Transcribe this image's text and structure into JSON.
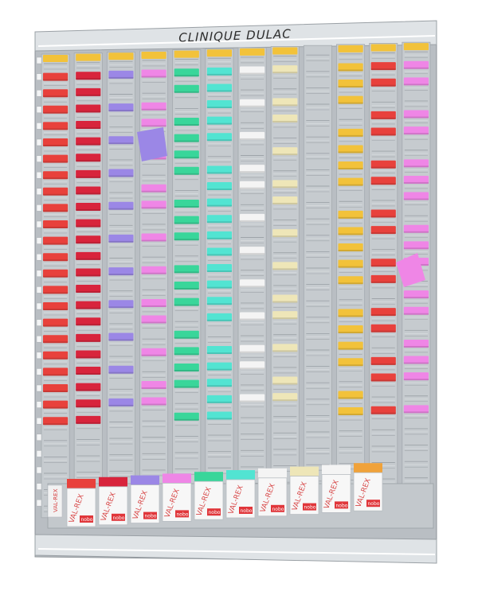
{
  "title": "CLINIQUE DULAC",
  "brand_labels": [
    "VAL-REX",
    "nobo"
  ],
  "board": {
    "columns": 12,
    "rows": 28,
    "frame_color": "#b9bec3",
    "slot_color": "#c6cbcf",
    "slot_line_color": "#9ea4a9",
    "rail_color": "#dfe3e6"
  },
  "colors": {
    "yellow": "#f2c23a",
    "red": "#e8413c",
    "crimson": "#d8243c",
    "violet": "#9b87e6",
    "pink": "#ef86e6",
    "green": "#39d69a",
    "aqua": "#52e4d2",
    "white": "#f4f4f4",
    "cream": "#eee6b8",
    "orange": "#f0a23a"
  },
  "columns": [
    {
      "name": "col-1",
      "header": "yellow",
      "cards": [
        "red",
        "red",
        "red",
        "red",
        "red",
        "red",
        "red",
        "red",
        "red",
        "red",
        "red",
        "red",
        "red",
        "red",
        "red",
        "red",
        "red",
        "red",
        "red",
        "red",
        "red",
        "red"
      ],
      "gaps": []
    },
    {
      "name": "col-2",
      "header": "yellow",
      "cards": [
        "crimson",
        "crimson",
        "crimson",
        "crimson",
        "crimson",
        "crimson",
        "crimson",
        "crimson",
        "crimson",
        "crimson",
        "crimson",
        "crimson",
        "crimson",
        "crimson",
        "crimson",
        "crimson",
        "crimson",
        "crimson",
        "crimson",
        "crimson",
        "crimson",
        "crimson"
      ],
      "gaps": []
    },
    {
      "name": "col-3",
      "header": "yellow",
      "cards": [
        "violet",
        "violet",
        "violet",
        "violet",
        "violet",
        "violet",
        "violet",
        "violet",
        "violet",
        "violet",
        "violet"
      ],
      "gaps": []
    },
    {
      "name": "col-4",
      "header": "yellow",
      "cards": [
        "pink",
        "pink",
        "pink",
        "pink",
        "pink",
        "pink",
        "pink",
        "pink",
        "pink",
        "pink",
        "pink",
        "pink",
        "pink"
      ],
      "gaps": []
    },
    {
      "name": "col-5",
      "header": "yellow",
      "cards": [
        "green",
        "green",
        "green",
        "green",
        "green",
        "green",
        "green",
        "green",
        "green",
        "green",
        "green",
        "green",
        "green",
        "green",
        "green",
        "green",
        "green"
      ],
      "gaps": []
    },
    {
      "name": "col-6",
      "header": "yellow",
      "cards": [
        "aqua",
        "aqua",
        "aqua",
        "aqua",
        "aqua",
        "aqua",
        "aqua",
        "aqua",
        "aqua",
        "aqua",
        "aqua",
        "aqua",
        "aqua",
        "aqua",
        "aqua",
        "aqua",
        "aqua",
        "aqua",
        "aqua",
        "aqua"
      ],
      "gaps": []
    },
    {
      "name": "col-7",
      "header": "yellow",
      "cards": [
        "white",
        "white",
        "white",
        "white",
        "white",
        "white",
        "white",
        "white",
        "white",
        "white",
        "white",
        "white"
      ],
      "gaps": []
    },
    {
      "name": "col-8",
      "header": "yellow",
      "cards": [
        "cream",
        "cream",
        "cream",
        "cream",
        "cream",
        "cream",
        "cream",
        "cream",
        "cream",
        "cream",
        "cream",
        "cream",
        "cream"
      ],
      "gaps": []
    },
    {
      "name": "col-9",
      "header": "none",
      "cards": [],
      "gaps": []
    },
    {
      "name": "col-10",
      "header": "yellow",
      "cards": [
        "yellow",
        "yellow",
        "yellow",
        "yellow",
        "yellow",
        "yellow",
        "yellow",
        "yellow",
        "yellow",
        "yellow",
        "yellow",
        "yellow",
        "yellow",
        "yellow",
        "yellow",
        "yellow",
        "yellow",
        "yellow"
      ],
      "gaps": []
    },
    {
      "name": "col-11",
      "header": "yellow",
      "cards": [
        "red",
        "red",
        "red",
        "red",
        "red",
        "red",
        "red",
        "red",
        "red",
        "red",
        "red",
        "red",
        "red",
        "red",
        "red"
      ],
      "gaps": []
    },
    {
      "name": "col-12",
      "header": "yellow",
      "cards": [
        "pink",
        "pink",
        "pink",
        "pink",
        "pink",
        "pink",
        "pink",
        "pink",
        "pink",
        "pink",
        "pink",
        "pink",
        "pink",
        "pink",
        "pink",
        "pink"
      ],
      "gaps": []
    }
  ],
  "dispensers": [
    "red",
    "crimson",
    "violet",
    "pink",
    "green",
    "aqua",
    "white",
    "cream",
    "white",
    "orange"
  ],
  "loose_cards": [
    "violet",
    "pink"
  ]
}
